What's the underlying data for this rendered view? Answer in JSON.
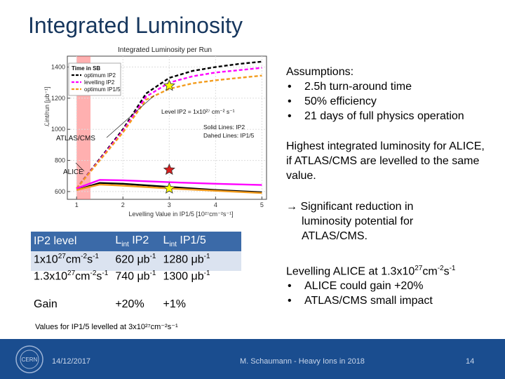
{
  "slide": {
    "title": "Integrated Luminosity",
    "assumptions": {
      "heading": "Assumptions:",
      "bullet": "•",
      "items": [
        "2.5h turn-around time",
        "50% efficiency",
        "21 days of full physics operation"
      ]
    },
    "note_highest": "Highest integrated luminosity for ALICE, if ATLAS/CMS are levelled to the same value.",
    "note_reduction": {
      "arrow": "→",
      "line1": "Significant reduction in",
      "line2": "luminosity potential for",
      "line3": "ATLAS/CMS."
    },
    "note_levelling": {
      "line_pre": "Levelling ALICE at 1.3x10",
      "line_exp1": "27",
      "line_mid": "cm",
      "line_exp2": "-2",
      "line_s": "s",
      "line_exp3": "-1",
      "bullets": [
        "ALICE could gain +20%",
        "ATLAS/CMS small impact"
      ]
    },
    "table": {
      "header": {
        "c1": "IP2 level",
        "c2_main": "L",
        "c2_sub": "int",
        "c2_rest": " IP2",
        "c3_main": "L",
        "c3_sub": "int",
        "c3_rest": " IP1/5"
      },
      "row1": {
        "base": "1x10",
        "e1": "27",
        "cm": "cm",
        "e2": "-2",
        "s": "s",
        "e3": "-1",
        "v2": "620 μb",
        "v2e": "-1",
        "v3": "1280 μb",
        "v3e": "-1"
      },
      "row2": {
        "base": "1.3x10",
        "e1": "27",
        "cm": "cm",
        "e2": "-2",
        "s": "s",
        "e3": "-1",
        "v2": "740 μb",
        "v2e": "-1",
        "v3": "1300 μb",
        "v3e": "-1"
      },
      "gain": {
        "label": "Gain",
        "v2": "+20%",
        "v3": "+1%"
      }
    },
    "footnote": "Values for IP1/5 levelled at 3x10²⁷cm⁻²s⁻¹",
    "footer": {
      "date": "14/12/2017",
      "author": "M. Schaumann - Heavy Ions in 2018",
      "page": "14",
      "logo_text": "CERN"
    }
  },
  "chart_data": {
    "type": "line",
    "title": "Integrated Luminosity per Run",
    "xlabel": "Levelling Value in IP1/5 [10²⁷cm⁻²s⁻¹]",
    "ylabel": "ℒint/run [μb⁻¹]",
    "xlim": [
      0.8,
      5.1
    ],
    "ylim": [
      550,
      1470
    ],
    "xticks": [
      "1",
      "2",
      "3",
      "4",
      "5"
    ],
    "yticks": [
      "600",
      "800",
      "1000",
      "1200",
      "1400"
    ],
    "legend": {
      "heading": "Time in SB",
      "placement": "top-left",
      "entries": [
        {
          "name": "optimum IP2",
          "color": "#000000",
          "dashed": true
        },
        {
          "name": "levelling IP2",
          "color": "#ff00ff",
          "dashed": true
        },
        {
          "name": "optimum IP1/5",
          "color": "#f39c1d",
          "dashed": true
        }
      ]
    },
    "annotations": {
      "level": "Level IP2 = 1x10²⁷ cm⁻² s⁻¹",
      "solid": "Solid Lines: IP2",
      "dashed": "Dahed Lines: IP1/5",
      "atlas": "ATLAS/CMS",
      "alice": "ALICE"
    },
    "series": [
      {
        "color": "#000000",
        "style": "dashed",
        "x": [
          1.0,
          2.0,
          2.5,
          3.0,
          3.5,
          4.0,
          4.5,
          5.0
        ],
        "y": [
          620,
          1000,
          1230,
          1330,
          1375,
          1400,
          1420,
          1435
        ]
      },
      {
        "color": "#ff00ff",
        "style": "dashed",
        "x": [
          1.0,
          2.0,
          2.5,
          3.0,
          3.5,
          4.0,
          4.5,
          5.0
        ],
        "y": [
          620,
          990,
          1210,
          1300,
          1340,
          1365,
          1380,
          1395
        ]
      },
      {
        "color": "#f39c1d",
        "style": "dashed",
        "x": [
          1.0,
          2.0,
          2.5,
          3.0,
          3.5,
          4.0,
          4.5,
          5.0
        ],
        "y": [
          620,
          980,
          1190,
          1260,
          1295,
          1315,
          1330,
          1345
        ]
      },
      {
        "color": "#000000",
        "style": "solid",
        "x": [
          1.0,
          1.5,
          2.0,
          3.0,
          4.0,
          5.0
        ],
        "y": [
          610,
          655,
          650,
          630,
          610,
          595
        ]
      },
      {
        "color": "#ff00ff",
        "style": "solid",
        "x": [
          1.0,
          1.5,
          2.0,
          3.0,
          4.0,
          5.0
        ],
        "y": [
          620,
          675,
          672,
          660,
          650,
          642
        ]
      },
      {
        "color": "#f39c1d",
        "style": "solid",
        "x": [
          1.0,
          1.5,
          2.0,
          3.0,
          4.0,
          5.0
        ],
        "y": [
          610,
          645,
          638,
          620,
          605,
          590
        ]
      }
    ],
    "markers": [
      {
        "x": 3.0,
        "y": 1280,
        "color": "#ffff00",
        "shape": "star"
      },
      {
        "x": 3.0,
        "y": 740,
        "color": "#d91e1e",
        "shape": "star"
      },
      {
        "x": 3.0,
        "y": 620,
        "color": "#ffff00",
        "shape": "star"
      }
    ],
    "highlight": {
      "x": [
        1.0,
        1.3
      ],
      "y": [
        550,
        1470
      ],
      "color": "#ff7070"
    }
  }
}
